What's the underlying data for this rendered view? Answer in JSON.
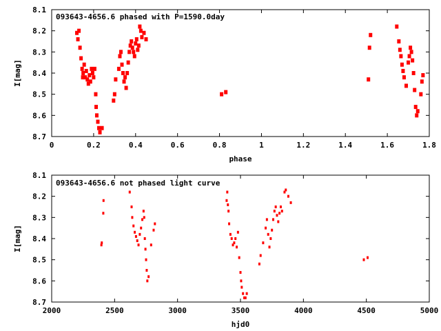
{
  "colors": {
    "points": "#ff0000",
    "axes": "#000000",
    "background": "#ffffff"
  },
  "chart_data": [
    {
      "type": "scatter",
      "title": "093643-4656.6 phased with P=1590.0day",
      "xlabel": "phase",
      "ylabel": "I[mag]",
      "xlim": [
        0,
        1.8
      ],
      "ylim": [
        8.1,
        8.7
      ],
      "y_inverted": true,
      "marker": "large",
      "xticks": [
        0,
        0.2,
        0.4,
        0.6,
        0.8,
        1,
        1.2,
        1.4,
        1.6,
        1.8
      ],
      "xtick_labels": [
        "0",
        "0.2",
        "0.4",
        "0.6",
        "0.8",
        "1",
        "1.2",
        "1.4",
        "1.6",
        "1.8"
      ],
      "yticks": [
        8.1,
        8.2,
        8.3,
        8.4,
        8.5,
        8.6,
        8.7
      ],
      "ytick_labels": [
        "8.1",
        "8.2",
        "8.3",
        "8.4",
        "8.5",
        "8.6",
        "8.7"
      ],
      "series": [
        {
          "name": "phased",
          "x": [
            0.12,
            0.125,
            0.13,
            0.135,
            0.14,
            0.145,
            0.148,
            0.15,
            0.155,
            0.16,
            0.165,
            0.17,
            0.175,
            0.18,
            0.185,
            0.19,
            0.195,
            0.2,
            0.205,
            0.21,
            0.212,
            0.215,
            0.22,
            0.225,
            0.23,
            0.24,
            0.295,
            0.3,
            0.305,
            0.32,
            0.325,
            0.33,
            0.335,
            0.34,
            0.345,
            0.35,
            0.355,
            0.36,
            0.365,
            0.37,
            0.375,
            0.38,
            0.385,
            0.39,
            0.395,
            0.4,
            0.405,
            0.41,
            0.415,
            0.42,
            0.425,
            0.43,
            0.44,
            0.45,
            0.81,
            0.83,
            1.51,
            1.515,
            1.52,
            1.645,
            1.655,
            1.66,
            1.665,
            1.67,
            1.675,
            1.68,
            1.69,
            1.7,
            1.705,
            1.71,
            1.715,
            1.72,
            1.725,
            1.73,
            1.735,
            1.74,
            1.745,
            1.76,
            1.765,
            1.77
          ],
          "y": [
            8.21,
            8.24,
            8.2,
            8.28,
            8.33,
            8.38,
            8.42,
            8.4,
            8.36,
            8.42,
            8.39,
            8.43,
            8.45,
            8.41,
            8.44,
            8.38,
            8.4,
            8.42,
            8.38,
            8.5,
            8.56,
            8.6,
            8.63,
            8.66,
            8.68,
            8.66,
            8.53,
            8.5,
            8.43,
            8.38,
            8.32,
            8.3,
            8.36,
            8.4,
            8.44,
            8.42,
            8.47,
            8.4,
            8.35,
            8.3,
            8.27,
            8.25,
            8.28,
            8.3,
            8.32,
            8.26,
            8.24,
            8.29,
            8.27,
            8.18,
            8.2,
            8.23,
            8.21,
            8.24,
            8.5,
            8.49,
            8.43,
            8.28,
            8.22,
            8.18,
            8.25,
            8.29,
            8.32,
            8.36,
            8.39,
            8.42,
            8.46,
            8.35,
            8.32,
            8.28,
            8.3,
            8.34,
            8.4,
            8.48,
            8.56,
            8.6,
            8.58,
            8.5,
            8.44,
            8.41
          ]
        }
      ]
    },
    {
      "type": "scatter",
      "title": "093643-4656.6 not phased light curve",
      "xlabel": "hjd0",
      "ylabel": "I[mag]",
      "xlim": [
        2000,
        5000
      ],
      "ylim": [
        8.1,
        8.7
      ],
      "y_inverted": true,
      "marker": "small",
      "xticks": [
        2000,
        2500,
        3000,
        3500,
        4000,
        4500,
        5000
      ],
      "xtick_labels": [
        "2000",
        "2500",
        "3000",
        "3500",
        "4000",
        "4500",
        "5000"
      ],
      "yticks": [
        8.1,
        8.2,
        8.3,
        8.4,
        8.5,
        8.6,
        8.7
      ],
      "ytick_labels": [
        "8.1",
        "8.2",
        "8.3",
        "8.4",
        "8.5",
        "8.6",
        "8.7"
      ],
      "series": [
        {
          "name": "unphased",
          "x": [
            2395,
            2398,
            2410,
            2412,
            2620,
            2635,
            2640,
            2650,
            2660,
            2670,
            2680,
            2690,
            2700,
            2710,
            2720,
            2730,
            2735,
            2740,
            2745,
            2750,
            2755,
            2760,
            2770,
            2790,
            2810,
            2820,
            3390,
            3395,
            3400,
            3405,
            3410,
            3420,
            3430,
            3440,
            3450,
            3460,
            3470,
            3480,
            3490,
            3500,
            3505,
            3510,
            3520,
            3530,
            3540,
            3550,
            3650,
            3660,
            3680,
            3700,
            3710,
            3720,
            3730,
            3740,
            3750,
            3760,
            3770,
            3780,
            3790,
            3800,
            3810,
            3820,
            3830,
            3850,
            3860,
            3880,
            3900,
            4480,
            4510
          ],
          "y": [
            8.43,
            8.42,
            8.28,
            8.22,
            8.18,
            8.25,
            8.3,
            8.34,
            8.37,
            8.39,
            8.41,
            8.43,
            8.38,
            8.35,
            8.31,
            8.27,
            8.3,
            8.4,
            8.45,
            8.5,
            8.55,
            8.6,
            8.58,
            8.43,
            8.36,
            8.33,
            8.22,
            8.18,
            8.24,
            8.27,
            8.33,
            8.38,
            8.4,
            8.43,
            8.42,
            8.4,
            8.44,
            8.37,
            8.49,
            8.56,
            8.6,
            8.63,
            8.66,
            8.68,
            8.68,
            8.66,
            8.52,
            8.48,
            8.42,
            8.35,
            8.31,
            8.38,
            8.44,
            8.4,
            8.36,
            8.31,
            8.27,
            8.25,
            8.29,
            8.32,
            8.28,
            8.25,
            8.27,
            8.18,
            8.17,
            8.2,
            8.23,
            8.5,
            8.49
          ]
        }
      ]
    }
  ]
}
